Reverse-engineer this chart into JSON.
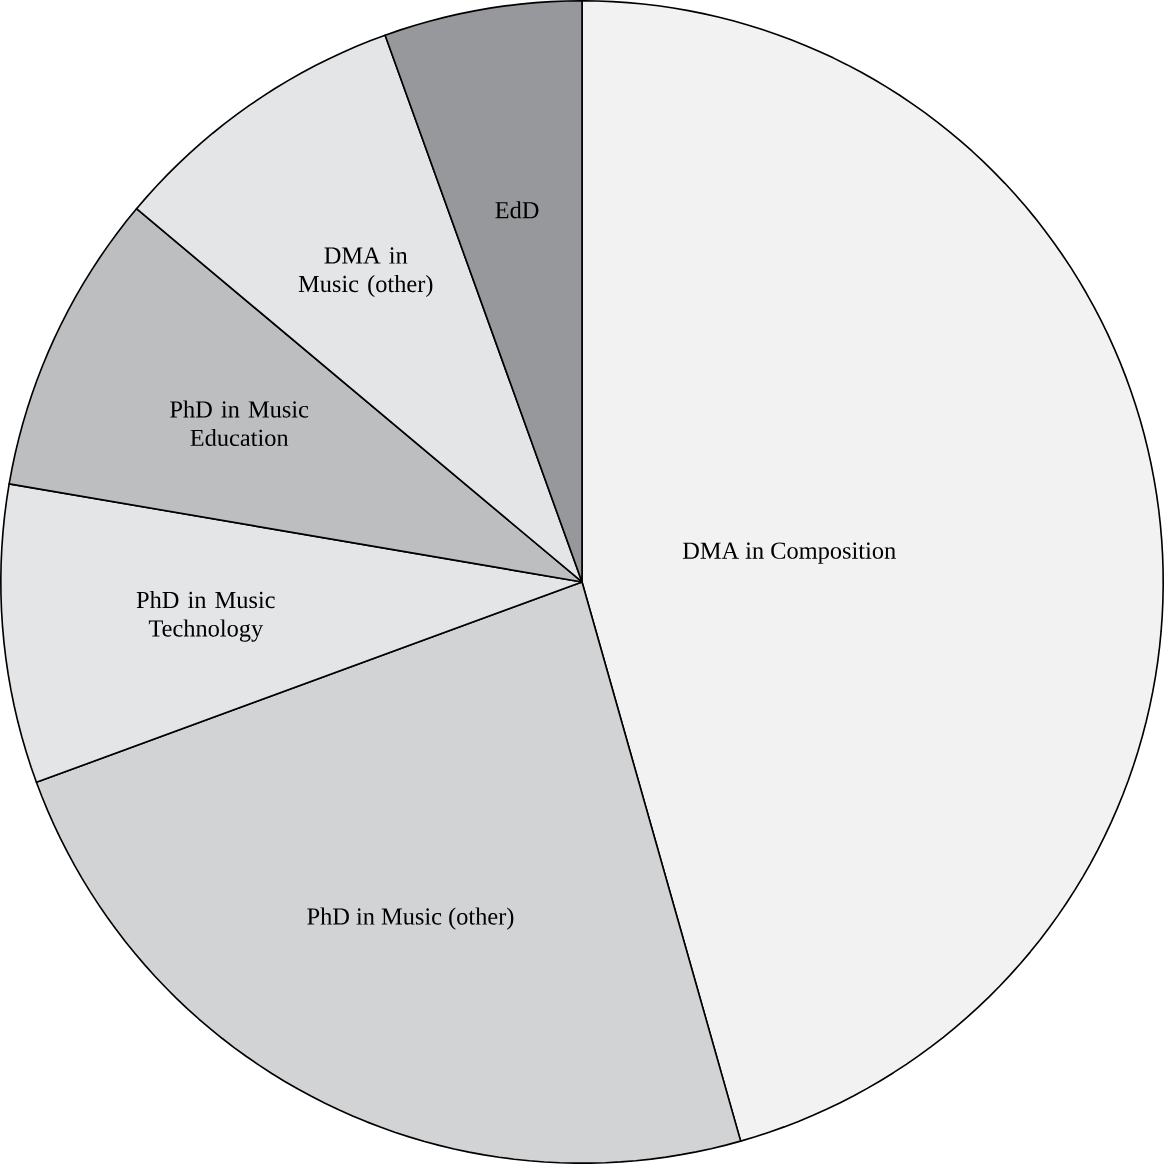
{
  "chart_data": {
    "type": "pie",
    "categories": [
      "DMA in Composition",
      "PhD in Music (other)",
      "PhD in Music Technology",
      "PhD in Music Education",
      "DMA in Music (other)",
      "EdD"
    ],
    "values": [
      45.6,
      23.8,
      8.3,
      8.4,
      8.4,
      5.5
    ],
    "colors": [
      "#f2f2f2",
      "#d2d3d5",
      "#e4e5e7",
      "#bdbec0",
      "#e4e5e7",
      "#97989b"
    ]
  }
}
